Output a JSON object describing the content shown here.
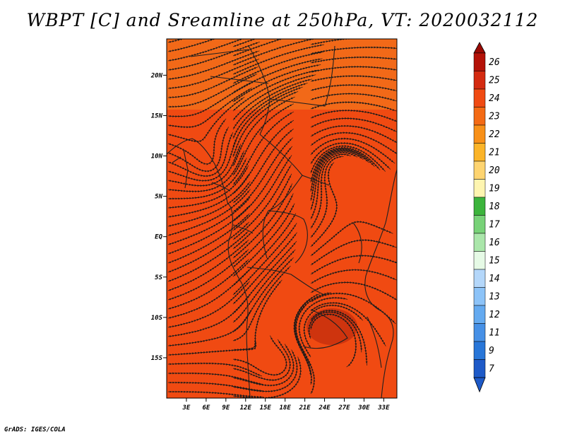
{
  "title": "WBPT [C] and Sreamline at 250hPa, VT: 2020032112",
  "footer": "GrADS: IGES/COLA",
  "map": {
    "lon_range": [
      0,
      35
    ],
    "lat_range": [
      -20,
      24.5
    ],
    "lat_ticks": [
      {
        "value": 20,
        "label": "20N"
      },
      {
        "value": 15,
        "label": "15N"
      },
      {
        "value": 10,
        "label": "10N"
      },
      {
        "value": 5,
        "label": "5N"
      },
      {
        "value": 0,
        "label": "EQ"
      },
      {
        "value": -5,
        "label": "5S"
      },
      {
        "value": -10,
        "label": "10S"
      },
      {
        "value": -15,
        "label": "15S"
      }
    ],
    "lon_ticks": [
      {
        "value": 3,
        "label": "3E"
      },
      {
        "value": 6,
        "label": "6E"
      },
      {
        "value": 9,
        "label": "9E"
      },
      {
        "value": 12,
        "label": "12E"
      },
      {
        "value": 15,
        "label": "15E"
      },
      {
        "value": 18,
        "label": "18E"
      },
      {
        "value": 21,
        "label": "21E"
      },
      {
        "value": 24,
        "label": "24E"
      },
      {
        "value": 27,
        "label": "27E"
      },
      {
        "value": 30,
        "label": "30E"
      },
      {
        "value": 33,
        "label": "33E"
      }
    ],
    "field_colors": {
      "base": "#f04a12",
      "warm_north": "#f27a1c",
      "cool_core": "#c8300e"
    }
  },
  "colorbar": {
    "labels": [
      "26",
      "25",
      "24",
      "23",
      "22",
      "21",
      "20",
      "19",
      "18",
      "17",
      "16",
      "15",
      "14",
      "13",
      "12",
      "11",
      "9",
      "7"
    ],
    "colors": [
      "#b41208",
      "#d42a10",
      "#f04a12",
      "#f46a14",
      "#f89018",
      "#fbb428",
      "#fed470",
      "#fef5b0",
      "#3cb43c",
      "#78d278",
      "#aae6aa",
      "#e6fae6",
      "#b4d7fa",
      "#8cc3f8",
      "#64aaf0",
      "#4690e6",
      "#2876d8",
      "#1e5ac8"
    ],
    "top_arrow_color": "#9a0a04",
    "bottom_arrow_color": "#1e5ac8"
  }
}
